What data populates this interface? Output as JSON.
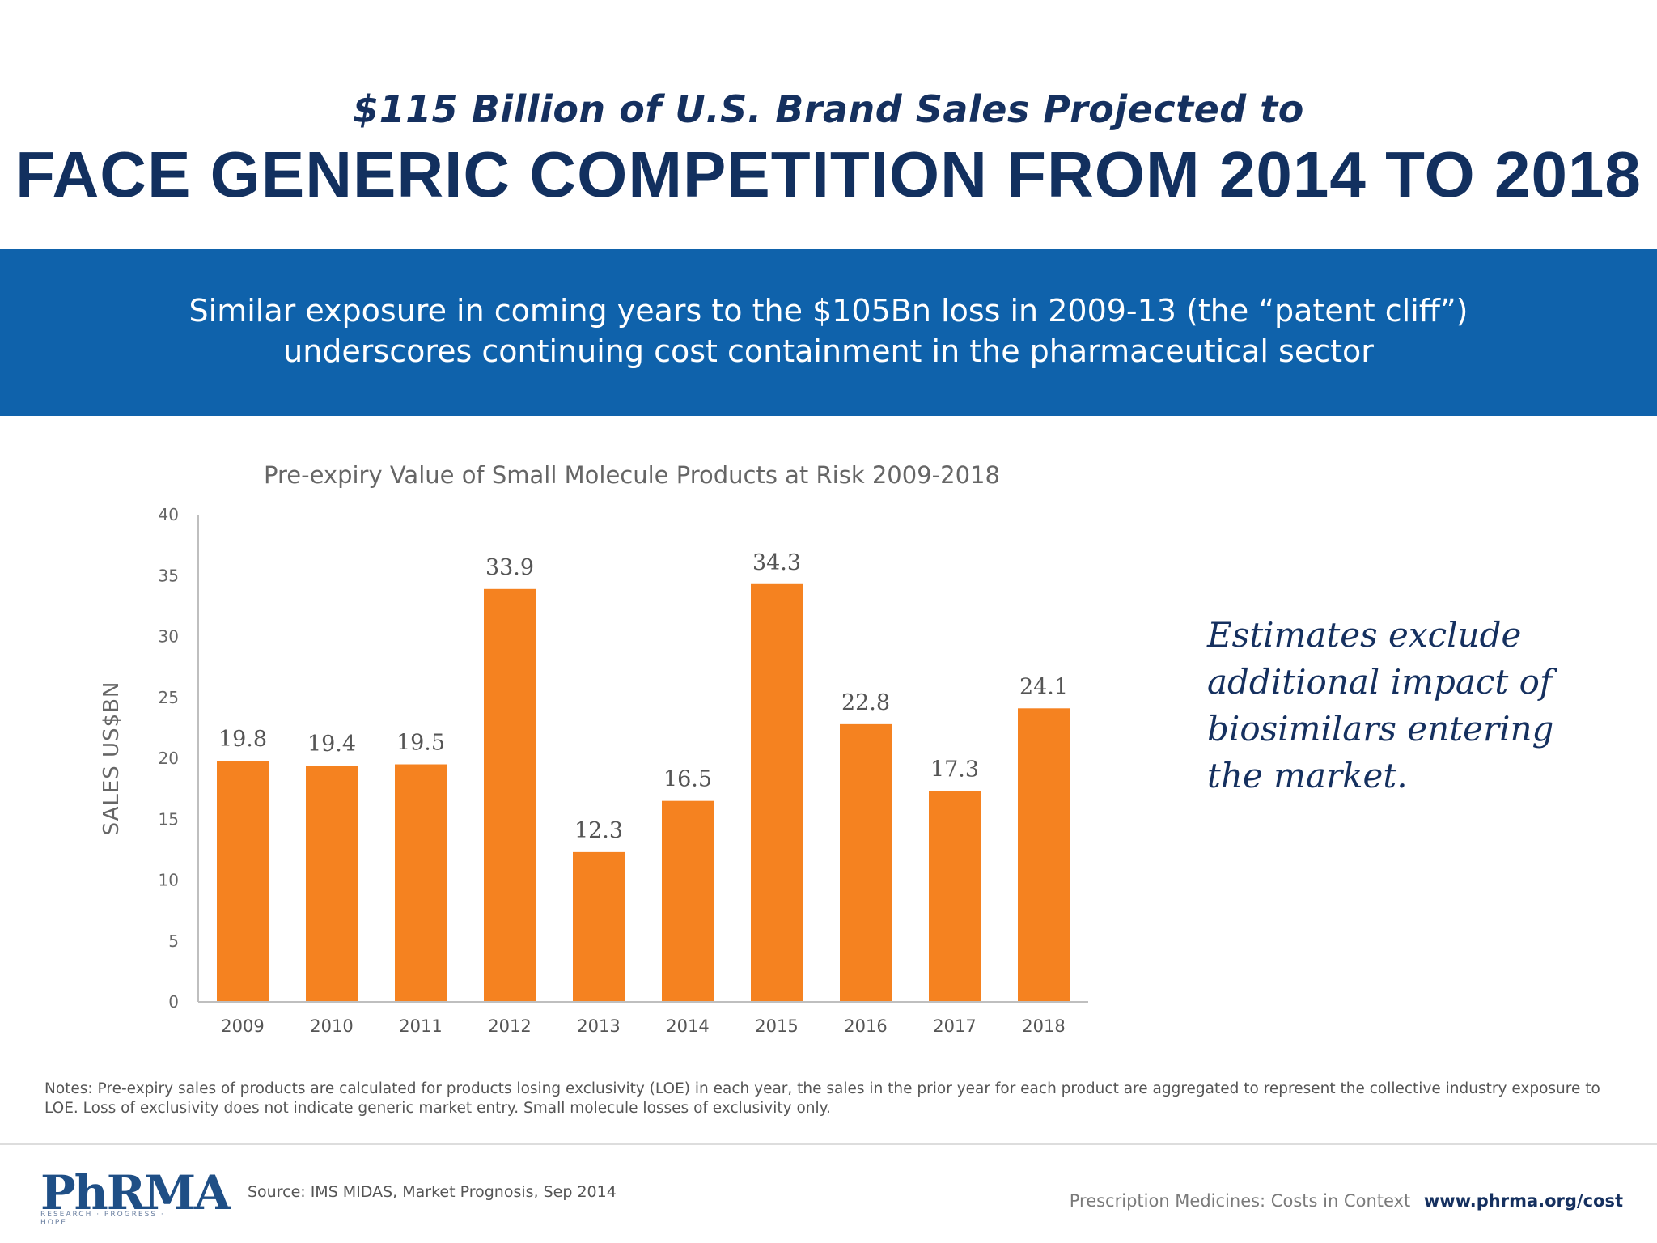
{
  "header": {
    "kicker": "$115 Billion of U.S. Brand Sales Projected to",
    "headline": "FACE GENERIC COMPETITION FROM 2014 TO 2018"
  },
  "banner": {
    "line1": "Similar exposure in coming years to the $105Bn loss in 2009-13 (the “patent cliff”)",
    "line2": "underscores continuing cost containment in the pharmaceutical sector",
    "background": "#0f62ab"
  },
  "chart_data": {
    "type": "bar",
    "title": "Pre-expiry Value of Small Molecule Products at Risk 2009-2018",
    "xlabel": "",
    "ylabel": "SALES US$BN",
    "categories": [
      "2009",
      "2010",
      "2011",
      "2012",
      "2013",
      "2014",
      "2015",
      "2016",
      "2017",
      "2018"
    ],
    "values": [
      19.8,
      19.4,
      19.5,
      33.9,
      12.3,
      16.5,
      34.3,
      22.8,
      17.3,
      24.1
    ],
    "value_labels": [
      "19.8",
      "19.4",
      "19.5",
      "33.9",
      "12.3",
      "16.5",
      "34.3",
      "22.8",
      "17.3",
      "24.1"
    ],
    "ylim": [
      0,
      40
    ],
    "yticks": [
      "0",
      "5",
      "10",
      "15",
      "20",
      "25",
      "30",
      "35",
      "40"
    ],
    "bar_color": "#f58220",
    "grid": false,
    "legend": "none"
  },
  "side_note": {
    "line1": "Estimates exclude",
    "line2": "additional impact of",
    "line3": "biosimilars entering",
    "line4": "the market."
  },
  "notes": "Notes: Pre-expiry sales of products are calculated for products losing exclusivity (LOE) in each year, the sales in the prior year for each product are aggregated to represent the collective industry exposure to LOE. Loss of exclusivity does not indicate generic market entry. Small molecule losses of exclusivity only.",
  "footer": {
    "logo_text": "PhRMA",
    "logo_tagline": "RESEARCH · PROGRESS · HOPE",
    "source": "Source: IMS MIDAS, Market Prognosis, Sep 2014",
    "caption": "Prescription Medicines: Costs in Context",
    "url": "www.phrma.org/cost"
  }
}
